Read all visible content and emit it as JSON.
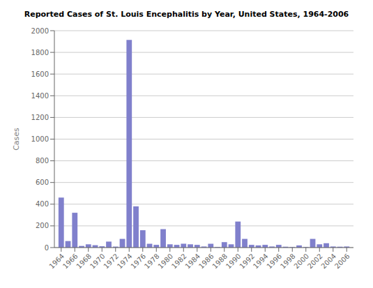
{
  "chart_data": {
    "type": "bar",
    "title": "Reported Cases of St. Louis Encephalitis by Year, United States, 1964-2006",
    "ylabel": "Cases",
    "x": [
      1964,
      1965,
      1966,
      1967,
      1968,
      1969,
      1970,
      1971,
      1972,
      1973,
      1974,
      1975,
      1976,
      1977,
      1978,
      1979,
      1980,
      1981,
      1982,
      1983,
      1984,
      1985,
      1986,
      1987,
      1988,
      1989,
      1990,
      1991,
      1992,
      1993,
      1994,
      1995,
      1996,
      1997,
      1998,
      1999,
      2000,
      2001,
      2002,
      2003,
      2004,
      2005,
      2006
    ],
    "values": [
      461,
      60,
      321,
      15,
      30,
      22,
      12,
      55,
      9,
      80,
      1915,
      380,
      160,
      35,
      25,
      170,
      30,
      25,
      35,
      30,
      25,
      10,
      35,
      5,
      50,
      30,
      240,
      80,
      25,
      20,
      25,
      10,
      25,
      8,
      5,
      20,
      5,
      80,
      30,
      40,
      10,
      8,
      10
    ],
    "color": "#8080cc",
    "xlim": [
      1963,
      2007
    ],
    "xticks": [
      1964,
      1966,
      1968,
      1970,
      1972,
      1974,
      1976,
      1978,
      1980,
      1982,
      1984,
      1986,
      1988,
      1990,
      1992,
      1994,
      1996,
      1998,
      2000,
      2002,
      2004,
      2006
    ],
    "ylim": [
      0,
      2000
    ],
    "yticks": [
      0,
      200,
      400,
      600,
      800,
      1000,
      1200,
      1400,
      1600,
      1800,
      2000
    ],
    "grid": true
  }
}
